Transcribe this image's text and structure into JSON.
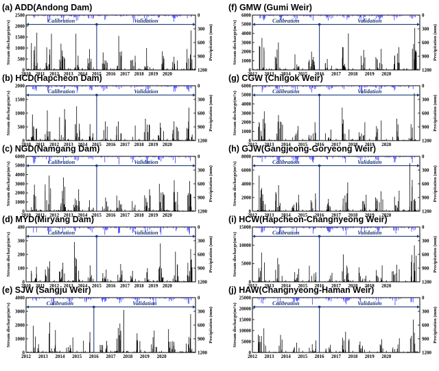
{
  "figure": {
    "y_left_label": "Stream discharge(m³/s)",
    "y_right_label": "Precipitation (mm)",
    "calibration_label": "Calibration",
    "validation_label": "Validation"
  },
  "colors": {
    "discharge": "#000000",
    "precipitation": "#1a1aff",
    "period_line": "#1f3a7a",
    "period_text": "#1f3a7a"
  },
  "chart_data": [
    {
      "type": "line",
      "title": "(a) ADD(Andong Dam)",
      "x_ticks": [
        "2010",
        "2011",
        "2012",
        "2013",
        "2014",
        "2015",
        "2016",
        "2017",
        "2018",
        "2019",
        "2020"
      ],
      "y_left_ticks": [
        0,
        500,
        1000,
        1500,
        2000,
        2500
      ],
      "y_left_lim": [
        0,
        2500
      ],
      "y_right_ticks": [
        0,
        300,
        600,
        900,
        1200
      ],
      "y_right_lim": [
        0,
        1200
      ],
      "split_year": "2015",
      "peaks": [
        1700,
        1650,
        1200,
        1650,
        950,
        800,
        1550,
        650,
        1000,
        850,
        600,
        1800
      ]
    },
    {
      "type": "line",
      "title": "(b) HCD(Hapcheon Dam)",
      "x_ticks": [
        "2010",
        "2011",
        "2012",
        "2013",
        "2014",
        "2015",
        "2016",
        "2017",
        "2018",
        "2019",
        "2020"
      ],
      "y_left_ticks": [
        0,
        500,
        1000,
        1500,
        2000
      ],
      "y_left_lim": [
        0,
        2000
      ],
      "y_right_ticks": [
        0,
        300,
        600,
        900,
        1200
      ],
      "y_right_lim": [
        0,
        1200
      ],
      "split_year": "2015",
      "peaks": [
        950,
        1100,
        1150,
        1250,
        600,
        700,
        700,
        550,
        800,
        650,
        700,
        1200
      ]
    },
    {
      "type": "line",
      "title": "(c) NGD(Namgang Dam)",
      "x_ticks": [
        "2010",
        "2011",
        "2012",
        "2013",
        "2014",
        "2015",
        "2016",
        "2017",
        "2018",
        "2019",
        "2020"
      ],
      "y_left_ticks": [
        0,
        1000,
        2000,
        3000,
        4000,
        5000,
        6000
      ],
      "y_left_lim": [
        0,
        6000
      ],
      "y_right_ticks": [
        0,
        300,
        600,
        900,
        1200
      ],
      "y_right_lim": [
        0,
        1200
      ],
      "split_year": "2015",
      "peaks": [
        2900,
        3900,
        3700,
        2400,
        1200,
        1500,
        1700,
        1100,
        2400,
        3000,
        3400,
        3300
      ]
    },
    {
      "type": "line",
      "title": "(d) MYD(Miryang Dam)",
      "x_ticks": [
        "2010",
        "2011",
        "2012",
        "2013",
        "2014",
        "2015",
        "2016",
        "2017",
        "2018",
        "2019",
        "2020"
      ],
      "y_left_ticks": [
        0,
        100,
        200,
        300,
        400
      ],
      "y_left_lim": [
        0,
        400
      ],
      "y_right_ticks": [
        0,
        300,
        600,
        900,
        1200
      ],
      "y_right_lim": [
        0,
        1200
      ],
      "split_year": "2015",
      "peaks": [
        110,
        150,
        140,
        290,
        120,
        90,
        130,
        80,
        100,
        280,
        220,
        240
      ]
    },
    {
      "type": "line",
      "title": "(e) SJW (Sangju Weir)",
      "x_ticks": [
        "2012",
        "2013",
        "2014",
        "2015",
        "2016",
        "2017",
        "2018",
        "2019",
        "2020"
      ],
      "y_left_ticks": [
        0,
        1000,
        2000,
        3000,
        4000
      ],
      "y_left_lim": [
        0,
        4000
      ],
      "y_right_ticks": [
        0,
        300,
        600,
        900,
        1200
      ],
      "y_right_lim": [
        0,
        1200
      ],
      "split_year": "2016",
      "peaks": [
        1950,
        2200,
        1100,
        1500,
        850,
        3100,
        1400,
        1600,
        1700,
        2800
      ]
    },
    {
      "type": "line",
      "title": "(f) GMW (Gumi Weir)",
      "x_ticks": [
        "2012",
        "2013",
        "2014",
        "2015",
        "2016",
        "2017",
        "2018",
        "2019",
        "2020"
      ],
      "y_left_ticks": [
        0,
        1000,
        2000,
        3000,
        4000,
        5000,
        6000
      ],
      "y_left_lim": [
        0,
        6000
      ],
      "y_right_ticks": [
        0,
        300,
        600,
        900,
        1200
      ],
      "y_right_lim": [
        0,
        1200
      ],
      "split_year": "2016",
      "peaks": [
        3500,
        3000,
        1700,
        2000,
        1200,
        4000,
        2200,
        2300,
        2500,
        4600
      ]
    },
    {
      "type": "line",
      "title": "(g) CGW (Chilgok Weir)",
      "x_ticks": [
        "2012",
        "2013",
        "2014",
        "2015",
        "2016",
        "2017",
        "2018",
        "2019",
        "2020"
      ],
      "y_left_ticks": [
        0,
        1000,
        2000,
        3000,
        4000,
        5000,
        6000
      ],
      "y_left_lim": [
        0,
        6000
      ],
      "y_right_ticks": [
        0,
        300,
        600,
        900,
        1200
      ],
      "y_right_lim": [
        0,
        1200
      ],
      "split_year": "2016",
      "peaks": [
        3200,
        2800,
        1600,
        2000,
        1200,
        3600,
        2000,
        2200,
        2400,
        5200
      ]
    },
    {
      "type": "line",
      "title": "(h) GJW(Gangjeong-Goryeong Weir)",
      "x_ticks": [
        "2012",
        "2013",
        "2014",
        "2015",
        "2016",
        "2017",
        "2018",
        "2019",
        "2020"
      ],
      "y_left_ticks": [
        0,
        2000,
        4000,
        6000,
        8000
      ],
      "y_left_lim": [
        0,
        8000
      ],
      "y_right_ticks": [
        0,
        300,
        600,
        900,
        1200
      ],
      "y_right_lim": [
        0,
        1200
      ],
      "split_year": "2016",
      "peaks": [
        5200,
        3800,
        2400,
        2600,
        1800,
        4200,
        2400,
        2900,
        3000,
        7000
      ]
    },
    {
      "type": "line",
      "title": "(i) HCW(Hapcheon-Changnyeong Weir)",
      "x_ticks": [
        "2012",
        "2013",
        "2014",
        "2015",
        "2016",
        "2017",
        "2018",
        "2019",
        "2020"
      ],
      "y_left_ticks": [
        0,
        5000,
        10000,
        15000
      ],
      "y_left_lim": [
        0,
        15000
      ],
      "y_right_ticks": [
        0,
        300,
        600,
        900,
        1200
      ],
      "y_right_lim": [
        0,
        1200
      ],
      "split_year": "2016",
      "peaks": [
        8000,
        6500,
        3600,
        4400,
        2500,
        7500,
        4000,
        4500,
        4700,
        10000
      ]
    },
    {
      "type": "line",
      "title": "(j) HAW(Changnyeong-Haman Weir)",
      "x_ticks": [
        "2012",
        "2013",
        "2014",
        "2015",
        "2016",
        "2017",
        "2018",
        "2019",
        "2020"
      ],
      "y_left_ticks": [
        0,
        5000,
        10000,
        15000,
        20000,
        25000
      ],
      "y_left_lim": [
        0,
        25000
      ],
      "y_right_ticks": [
        0,
        300,
        600,
        900,
        1200
      ],
      "y_right_lim": [
        0,
        1200
      ],
      "split_year": "2016",
      "peaks": [
        11000,
        8000,
        4500,
        5500,
        3500,
        9500,
        5000,
        6000,
        6500,
        15000
      ]
    }
  ]
}
